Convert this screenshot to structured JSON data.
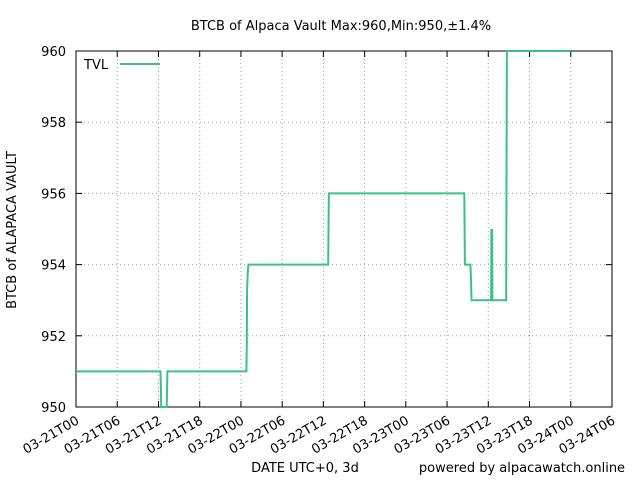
{
  "chart_data": {
    "type": "line",
    "title": "BTCB of Alpaca Vault Max:960,Min:950,±1.4%",
    "xlabel": "DATE UTC+0, 3d",
    "ylabel": "BTCB of ALAPACA VAULT",
    "footer": "powered by alpacawatch.online",
    "legend_position": "top-left",
    "grid": true,
    "x_range_hours": [
      0,
      78
    ],
    "ylim": [
      950,
      960
    ],
    "y_ticks": [
      950,
      952,
      954,
      956,
      958,
      960
    ],
    "x_ticks": [
      {
        "label": "03-21T00",
        "hour": 0
      },
      {
        "label": "03-21T06",
        "hour": 6
      },
      {
        "label": "03-21T12",
        "hour": 12
      },
      {
        "label": "03-21T18",
        "hour": 18
      },
      {
        "label": "03-22T00",
        "hour": 24
      },
      {
        "label": "03-22T06",
        "hour": 30
      },
      {
        "label": "03-22T12",
        "hour": 36
      },
      {
        "label": "03-22T18",
        "hour": 42
      },
      {
        "label": "03-23T00",
        "hour": 48
      },
      {
        "label": "03-23T06",
        "hour": 54
      },
      {
        "label": "03-23T12",
        "hour": 60
      },
      {
        "label": "03-23T18",
        "hour": 66
      },
      {
        "label": "03-24T00",
        "hour": 72
      },
      {
        "label": "03-24T06",
        "hour": 78
      }
    ],
    "series": [
      {
        "name": "TVL",
        "color": "#3cc08a",
        "x": [
          0,
          12.3,
          12.35,
          12.4,
          12.9,
          13.2,
          13.25,
          13.3,
          24.8,
          24.85,
          24.9,
          25.0,
          25.1,
          25.2,
          36.7,
          36.75,
          36.8,
          36.9,
          56.5,
          56.55,
          56.6,
          56.7,
          57.4,
          57.5,
          57.55,
          57.6,
          60.4,
          60.45,
          60.5,
          60.55,
          60.6,
          60.7,
          62.6,
          62.65,
          62.7,
          62.8,
          72
        ],
        "y": [
          951,
          951,
          950.5,
          950,
          950,
          950,
          950.5,
          951,
          951,
          951.8,
          953.3,
          953.8,
          954,
          954,
          954,
          955,
          956,
          956,
          956,
          955,
          954,
          954,
          954,
          953.5,
          953,
          953,
          953,
          955,
          953,
          955,
          953,
          953,
          953,
          956.5,
          960,
          960,
          960
        ]
      }
    ]
  }
}
